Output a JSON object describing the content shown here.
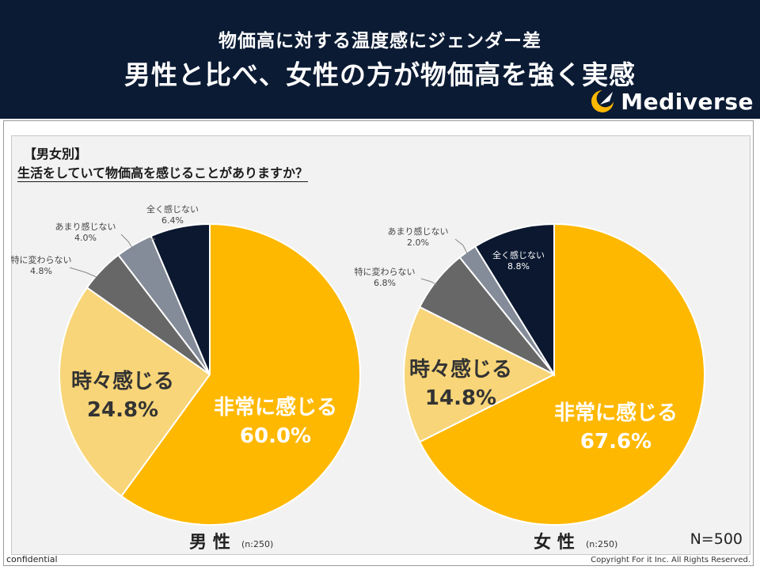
{
  "header": {
    "subtitle": "物価高に対する温度感にジェンダー差",
    "title": "男性と比べ、女性の方が物価高を強く実感",
    "logo_text": "Mediverse",
    "logo_icon": "crescent-leaf-icon"
  },
  "section": {
    "tag": "【男女別】",
    "question": "生活をしていて物価高を感じることがありますか？"
  },
  "colors": {
    "header_bg": "#0b1b34",
    "very_often": "#ffb800",
    "sometimes": "#f8d578",
    "no_change": "#676767",
    "rarely": "#848b99",
    "never": "#0b1830"
  },
  "chart_data": [
    {
      "type": "pie",
      "title": "男 性",
      "sample": "(n:250)",
      "slices": [
        {
          "label": "非常に感じる",
          "value": 60.0,
          "display": "60.0%",
          "color": "#ffb800",
          "big": true
        },
        {
          "label": "時々感じる",
          "value": 24.8,
          "display": "24.8%",
          "color": "#f8d578",
          "big": true
        },
        {
          "label": "特に変わらない",
          "value": 4.8,
          "display": "4.8%",
          "color": "#676767",
          "big": false
        },
        {
          "label": "あまり感じない",
          "value": 4.0,
          "display": "4.0%",
          "color": "#848b99",
          "big": false
        },
        {
          "label": "全く感じない",
          "value": 6.4,
          "display": "6.4%",
          "color": "#0b1830",
          "big": false
        }
      ]
    },
    {
      "type": "pie",
      "title": "女 性",
      "sample": "(n:250)",
      "slices": [
        {
          "label": "非常に感じる",
          "value": 67.6,
          "display": "67.6%",
          "color": "#ffb800",
          "big": true
        },
        {
          "label": "時々感じる",
          "value": 14.8,
          "display": "14.8%",
          "color": "#f8d578",
          "big": true
        },
        {
          "label": "特に変わらない",
          "value": 6.8,
          "display": "6.8%",
          "color": "#676767",
          "big": false
        },
        {
          "label": "あまり感じない",
          "value": 2.0,
          "display": "2.0%",
          "color": "#848b99",
          "big": false
        },
        {
          "label": "全く感じない",
          "value": 8.8,
          "display": "8.8%",
          "color": "#0b1830",
          "big": false
        }
      ]
    }
  ],
  "total_n": "N=500",
  "footer": {
    "left": "confidential",
    "right": "Copyright For it Inc. All Rights Reserved."
  }
}
